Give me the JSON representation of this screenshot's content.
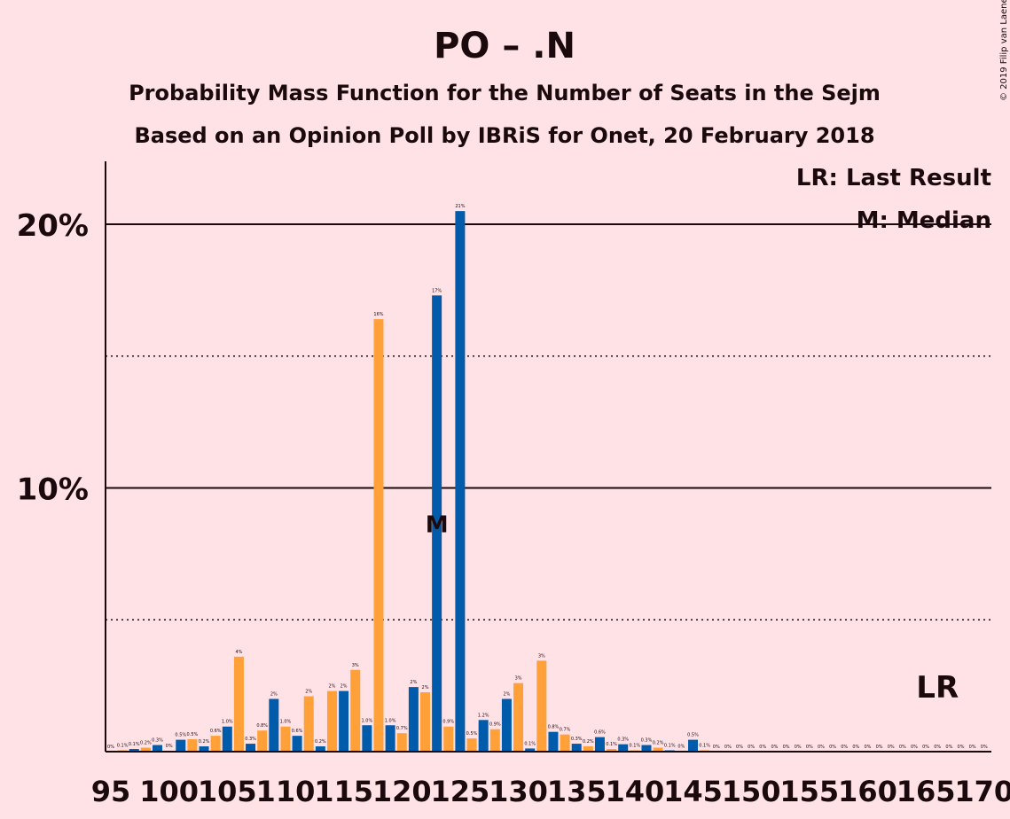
{
  "chart_data": {
    "type": "bar",
    "title": "PO – .N",
    "subtitle_1": "Probability Mass Function for the Number of Seats in the Sejm",
    "subtitle_2": "Based on an Opinion Poll by IBRiS for Onet, 20 February 2018",
    "copyright": "© 2019 Filip van Laenen",
    "legend_lr": "LR: Last Result",
    "legend_m": "M: Median",
    "median_marker": "M",
    "last_result_marker": "LR",
    "median_seat": 123,
    "last_result_seat": 166,
    "ylim": [
      0,
      22.3
    ],
    "xlim": [
      95,
      170
    ],
    "y_ticks": [
      {
        "value": 10,
        "label": "10%"
      },
      {
        "value": 20,
        "label": "20%"
      }
    ],
    "dotted_gridlines": [
      5,
      15
    ],
    "x_ticks": [
      95,
      100,
      105,
      110,
      115,
      120,
      125,
      130,
      135,
      140,
      145,
      150,
      155,
      160,
      165,
      170
    ],
    "x_tick_labels": [
      "95",
      "100",
      "105",
      "110",
      "115",
      "120",
      "125",
      "130",
      "135",
      "140",
      "145",
      "150",
      "155",
      "160",
      "165",
      "170"
    ],
    "colors": {
      "blue": "#005BAA",
      "orange": "#FFA038",
      "background": "#FFE2E6",
      "text": "#1a0a0d"
    },
    "bars": [
      {
        "seat": 95,
        "value": 0.0,
        "label": "0%"
      },
      {
        "seat": 96,
        "value": 0.05,
        "label": "0.1%"
      },
      {
        "seat": 97,
        "value": 0.1,
        "label": "0.1%"
      },
      {
        "seat": 98,
        "value": 0.15,
        "label": "0.2%"
      },
      {
        "seat": 99,
        "value": 0.25,
        "label": "0.3%"
      },
      {
        "seat": 100,
        "value": 0.03,
        "label": "0%"
      },
      {
        "seat": 101,
        "value": 0.45,
        "label": "0.5%"
      },
      {
        "seat": 102,
        "value": 0.47,
        "label": "0.5%"
      },
      {
        "seat": 103,
        "value": 0.2,
        "label": "0.2%"
      },
      {
        "seat": 104,
        "value": 0.6,
        "label": "0.6%"
      },
      {
        "seat": 105,
        "value": 0.95,
        "label": "1.0%"
      },
      {
        "seat": 106,
        "value": 3.6,
        "label": "4%"
      },
      {
        "seat": 107,
        "value": 0.3,
        "label": "0.3%"
      },
      {
        "seat": 108,
        "value": 0.8,
        "label": "0.8%"
      },
      {
        "seat": 109,
        "value": 2.0,
        "label": "2%"
      },
      {
        "seat": 110,
        "value": 0.95,
        "label": "1.0%"
      },
      {
        "seat": 111,
        "value": 0.6,
        "label": "0.6%"
      },
      {
        "seat": 112,
        "value": 2.1,
        "label": "2%"
      },
      {
        "seat": 113,
        "value": 0.2,
        "label": "0.2%"
      },
      {
        "seat": 114,
        "value": 2.3,
        "label": "2%"
      },
      {
        "seat": 115,
        "value": 2.3,
        "label": "2%"
      },
      {
        "seat": 116,
        "value": 3.1,
        "label": "3%"
      },
      {
        "seat": 117,
        "value": 1.0,
        "label": "1.0%"
      },
      {
        "seat": 118,
        "value": 16.4,
        "label": "16%"
      },
      {
        "seat": 119,
        "value": 1.0,
        "label": "1.0%"
      },
      {
        "seat": 120,
        "value": 0.7,
        "label": "0.7%"
      },
      {
        "seat": 121,
        "value": 2.45,
        "label": "2%"
      },
      {
        "seat": 122,
        "value": 2.25,
        "label": "2%"
      },
      {
        "seat": 123,
        "value": 17.3,
        "label": "17%"
      },
      {
        "seat": 124,
        "value": 0.95,
        "label": "0.9%"
      },
      {
        "seat": 125,
        "value": 20.5,
        "label": "21%"
      },
      {
        "seat": 126,
        "value": 0.5,
        "label": "0.5%"
      },
      {
        "seat": 127,
        "value": 1.2,
        "label": "1.2%"
      },
      {
        "seat": 128,
        "value": 0.85,
        "label": "0.9%"
      },
      {
        "seat": 129,
        "value": 2.0,
        "label": "2%"
      },
      {
        "seat": 130,
        "value": 2.6,
        "label": "3%"
      },
      {
        "seat": 131,
        "value": 0.12,
        "label": "0.1%"
      },
      {
        "seat": 132,
        "value": 3.45,
        "label": "3%"
      },
      {
        "seat": 133,
        "value": 0.75,
        "label": "0.8%"
      },
      {
        "seat": 134,
        "value": 0.65,
        "label": "0.7%"
      },
      {
        "seat": 135,
        "value": 0.3,
        "label": "0.3%"
      },
      {
        "seat": 136,
        "value": 0.2,
        "label": "0.2%"
      },
      {
        "seat": 137,
        "value": 0.55,
        "label": "0.6%"
      },
      {
        "seat": 138,
        "value": 0.1,
        "label": "0.1%"
      },
      {
        "seat": 139,
        "value": 0.28,
        "label": "0.3%"
      },
      {
        "seat": 140,
        "value": 0.05,
        "label": "0.1%"
      },
      {
        "seat": 141,
        "value": 0.25,
        "label": "0.3%"
      },
      {
        "seat": 142,
        "value": 0.15,
        "label": "0.2%"
      },
      {
        "seat": 143,
        "value": 0.05,
        "label": "0.1%"
      },
      {
        "seat": 144,
        "value": 0.02,
        "label": "0%"
      },
      {
        "seat": 145,
        "value": 0.45,
        "label": "0.5%"
      },
      {
        "seat": 146,
        "value": 0.05,
        "label": "0.1%"
      },
      {
        "seat": 147,
        "value": 0.0,
        "label": "0%"
      },
      {
        "seat": 148,
        "value": 0.0,
        "label": "0%"
      },
      {
        "seat": 149,
        "value": 0.0,
        "label": "0%"
      },
      {
        "seat": 150,
        "value": 0.0,
        "label": "0%"
      },
      {
        "seat": 151,
        "value": 0.0,
        "label": "0%"
      },
      {
        "seat": 152,
        "value": 0.0,
        "label": "0%"
      },
      {
        "seat": 153,
        "value": 0.0,
        "label": "0%"
      },
      {
        "seat": 154,
        "value": 0.0,
        "label": "0%"
      },
      {
        "seat": 155,
        "value": 0.0,
        "label": "0%"
      },
      {
        "seat": 156,
        "value": 0.0,
        "label": "0%"
      },
      {
        "seat": 157,
        "value": 0.0,
        "label": "0%"
      },
      {
        "seat": 158,
        "value": 0.0,
        "label": "0%"
      },
      {
        "seat": 159,
        "value": 0.0,
        "label": "0%"
      },
      {
        "seat": 160,
        "value": 0.0,
        "label": "0%"
      },
      {
        "seat": 161,
        "value": 0.0,
        "label": "0%"
      },
      {
        "seat": 162,
        "value": 0.0,
        "label": "0%"
      },
      {
        "seat": 163,
        "value": 0.0,
        "label": "0%"
      },
      {
        "seat": 164,
        "value": 0.0,
        "label": "0%"
      },
      {
        "seat": 165,
        "value": 0.0,
        "label": "0%"
      },
      {
        "seat": 166,
        "value": 0.0,
        "label": "0%"
      },
      {
        "seat": 167,
        "value": 0.0,
        "label": "0%"
      },
      {
        "seat": 168,
        "value": 0.0,
        "label": "0%"
      },
      {
        "seat": 169,
        "value": 0.0,
        "label": "0%"
      },
      {
        "seat": 170,
        "value": 0.0,
        "label": "0%"
      }
    ]
  }
}
